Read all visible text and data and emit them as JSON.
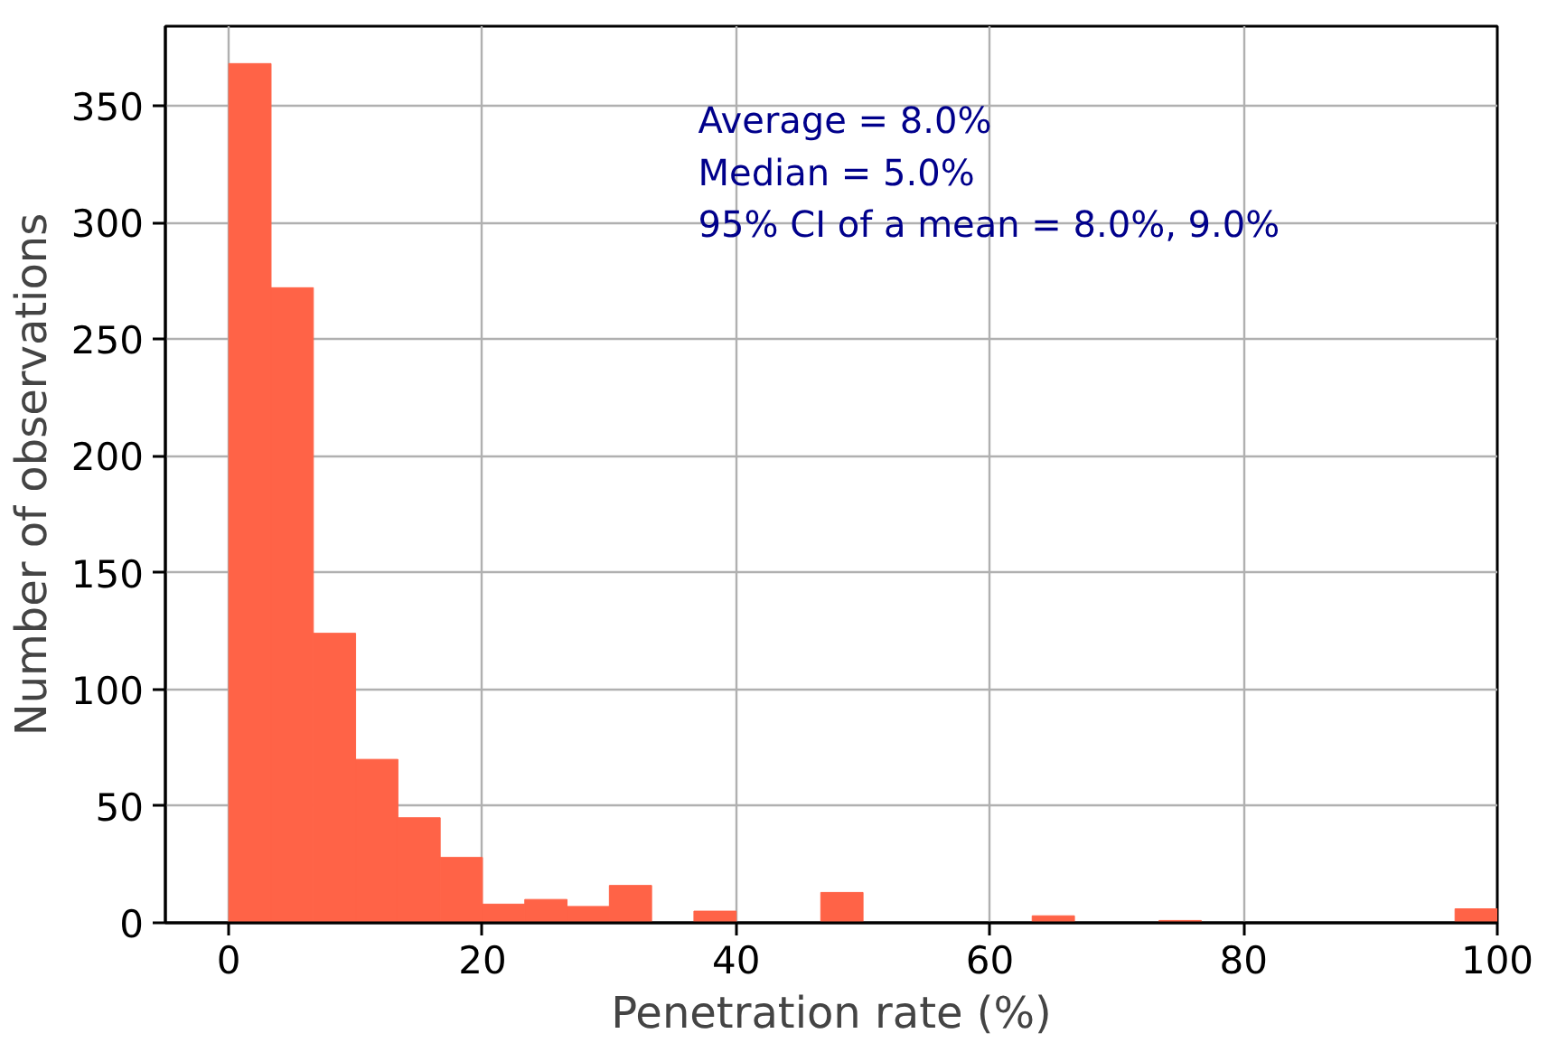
{
  "chart_data": {
    "type": "histogram",
    "xlabel": "Penetration rate (%)",
    "ylabel": "Number of observations",
    "bins": [
      0,
      3.333,
      6.667,
      10,
      13.333,
      16.667,
      20,
      23.333,
      26.667,
      30,
      33.333,
      36.667,
      40,
      43.333,
      46.667,
      50,
      53.333,
      56.667,
      60,
      63.333,
      66.667,
      70,
      73.333,
      76.667,
      80,
      83.333,
      86.667,
      90,
      93.333,
      96.667,
      100
    ],
    "values": [
      368,
      272,
      124,
      70,
      45,
      28,
      8,
      10,
      7,
      16,
      0,
      5,
      0,
      0,
      13,
      0,
      0,
      0,
      0,
      3,
      0,
      0,
      1,
      0,
      0,
      0,
      0,
      0,
      0,
      6
    ],
    "color": "#ff6347",
    "xlim": [
      -5,
      100
    ],
    "ylim": [
      0,
      384
    ],
    "xticks": [
      0,
      20,
      40,
      60,
      80,
      100
    ],
    "yticks": [
      0,
      50,
      100,
      150,
      200,
      250,
      300,
      350
    ],
    "grid": true,
    "annotations": [
      "Average = 8.0%",
      "Median = 5.0%",
      "95% CI of a mean = 8.0%, 9.0%"
    ]
  }
}
